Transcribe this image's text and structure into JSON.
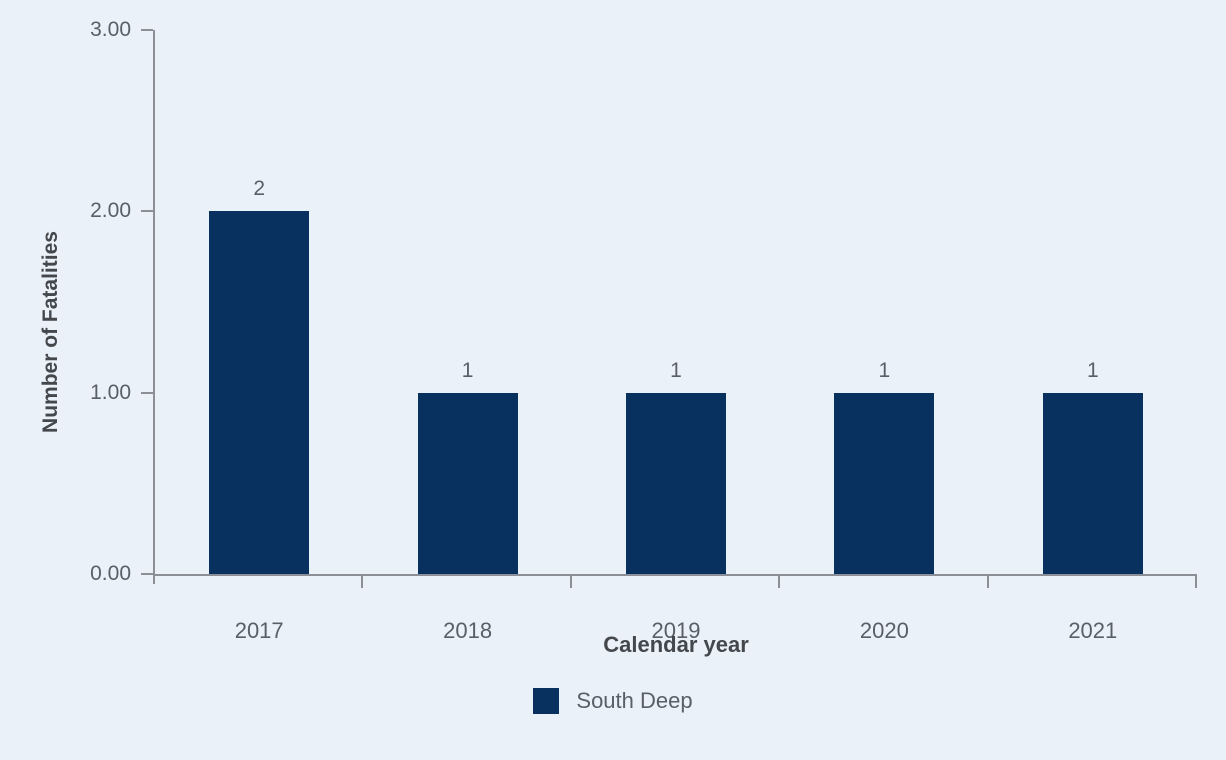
{
  "chart_data": {
    "type": "bar",
    "categories": [
      "2017",
      "2018",
      "2019",
      "2020",
      "2021"
    ],
    "series": [
      {
        "name": "South Deep",
        "values": [
          2,
          1,
          1,
          1,
          1
        ]
      }
    ],
    "bar_labels": [
      "2",
      "1",
      "1",
      "1",
      "1"
    ],
    "xlabel": "Calendar year",
    "ylabel": "Number of Fatalities",
    "ylim": [
      0,
      3
    ],
    "yticks": [
      {
        "value": 0,
        "label": "0.00"
      },
      {
        "value": 1,
        "label": "1.00"
      },
      {
        "value": 2,
        "label": "2.00"
      },
      {
        "value": 3,
        "label": "3.00"
      }
    ],
    "grid": false,
    "legend_position": "bottom"
  },
  "legend": {
    "south_deep_label": "South Deep"
  },
  "colors": {
    "background": "#ebf1f9",
    "bar": "#083160",
    "axis_line": "#8c9096",
    "tick_text": "#595f66",
    "title_text": "#44484d"
  }
}
